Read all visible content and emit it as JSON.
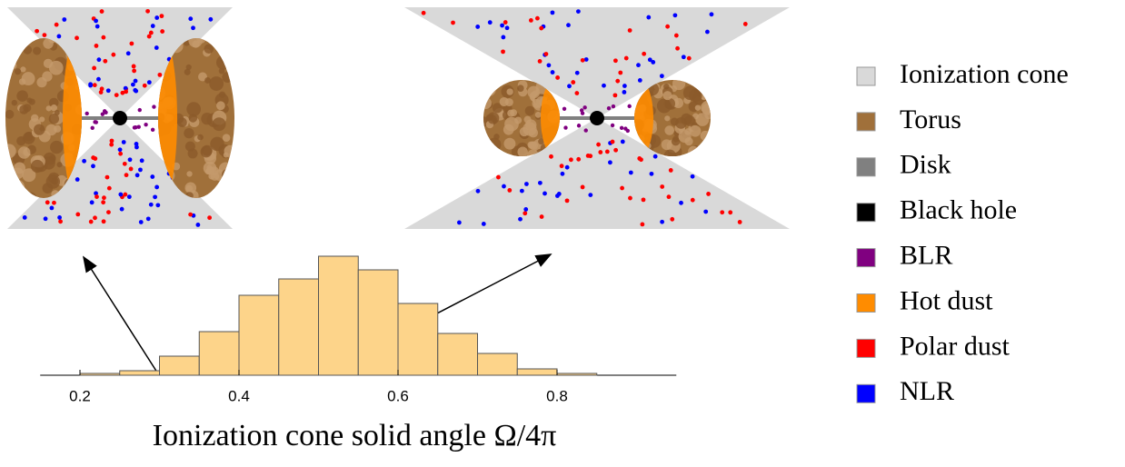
{
  "chart_data": {
    "type": "histogram",
    "xlabel": "Ionization cone solid angle Ω/4π",
    "bins": [
      0.2,
      0.25,
      0.3,
      0.35,
      0.4,
      0.45,
      0.5,
      0.55,
      0.6,
      0.65,
      0.7,
      0.75,
      0.8,
      0.85
    ],
    "values": [
      2,
      5,
      21,
      48,
      88,
      106,
      131,
      116,
      79,
      46,
      24,
      7,
      2
    ],
    "color": "#fdd48a",
    "xlim": [
      0.15,
      0.95
    ],
    "xticks": [
      0.2,
      0.4,
      0.6,
      0.8
    ],
    "ylim": [
      0,
      140
    ]
  },
  "legend": [
    {
      "name": "Ionization cone",
      "color": "#d9d9d9"
    },
    {
      "name": "Torus",
      "color": "#a0703a"
    },
    {
      "name": "Disk",
      "color": "#808080"
    },
    {
      "name": "Black hole",
      "color": "#000000"
    },
    {
      "name": "BLR",
      "color": "#800080"
    },
    {
      "name": "Hot dust",
      "color": "#ff8c00"
    },
    {
      "name": "Polar dust",
      "color": "#ff0000"
    },
    {
      "name": "NLR",
      "color": "#0000ff"
    }
  ]
}
